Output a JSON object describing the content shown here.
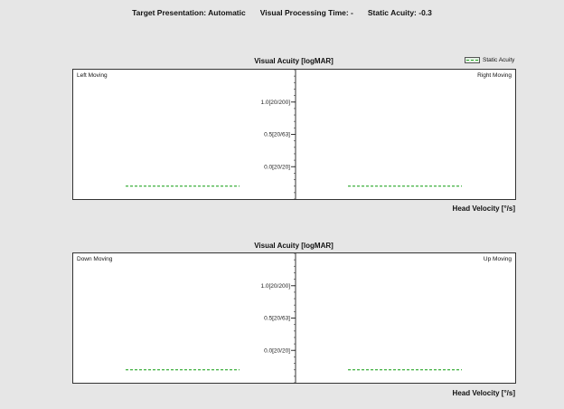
{
  "header": {
    "target_presentation": "Target Presentation: Automatic",
    "processing_time": "Visual Processing Time: -",
    "static_acuity": "Static Acuity: -0.3"
  },
  "legend": {
    "label": "Static Acuity",
    "color": "#2aa82a"
  },
  "chart_data": [
    {
      "type": "line",
      "title": "Visual Acuity [logMAR]",
      "xlabel": "Head Velocity [°/s]",
      "ylabel": "",
      "y_ticks": [
        "1.0[20/200]",
        "0.5[20/63]",
        "0.0[20/20]"
      ],
      "y_tick_values": [
        1.0,
        0.5,
        0.0
      ],
      "ylim": [
        -0.5,
        1.5
      ],
      "grid": false,
      "legend_position": "top-right",
      "left_panel_label": "Left Moving",
      "right_panel_label": "Right Moving",
      "series": [
        {
          "name": "Static Acuity",
          "value": -0.3,
          "style": "dashed",
          "color": "#2aa82a"
        }
      ]
    },
    {
      "type": "line",
      "title": "Visual Acuity [logMAR]",
      "xlabel": "Head Velocity [°/s]",
      "ylabel": "",
      "y_ticks": [
        "1.0[20/200]",
        "0.5[20/63]",
        "0.0[20/20]"
      ],
      "y_tick_values": [
        1.0,
        0.5,
        0.0
      ],
      "ylim": [
        -0.5,
        1.5
      ],
      "grid": false,
      "legend_position": "top-right",
      "left_panel_label": "Down Moving",
      "right_panel_label": "Up Moving",
      "series": [
        {
          "name": "Static Acuity",
          "value": -0.3,
          "style": "dashed",
          "color": "#2aa82a"
        }
      ]
    }
  ]
}
